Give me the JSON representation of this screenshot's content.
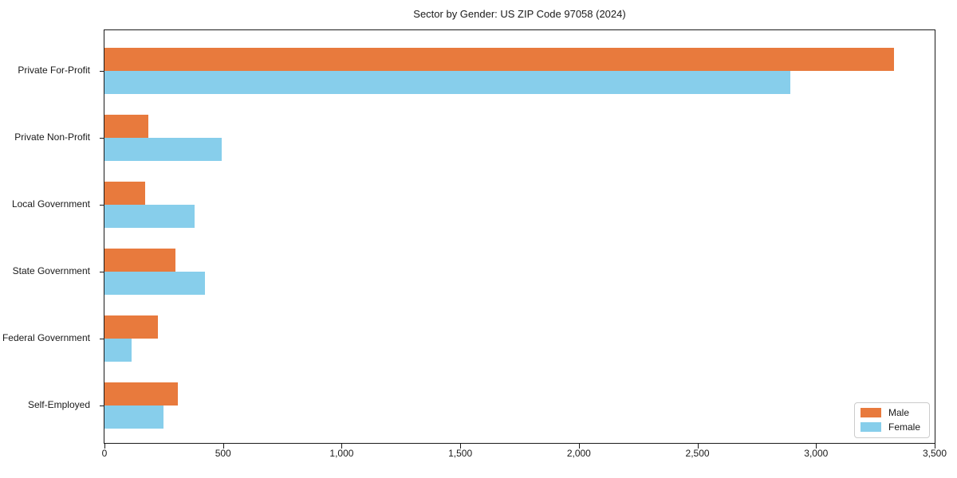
{
  "chart_data": {
    "type": "bar",
    "orientation": "horizontal",
    "title": "Sector by Gender: US ZIP Code 97058 (2024)",
    "categories": [
      "Private For-Profit",
      "Private Non-Profit",
      "Local Government",
      "State Government",
      "Federal Government",
      "Self-Employed"
    ],
    "series": [
      {
        "name": "Male",
        "color": "#E87A3D",
        "values": [
          3330,
          185,
          170,
          300,
          225,
          310
        ]
      },
      {
        "name": "Female",
        "color": "#87CEEB",
        "values": [
          2890,
          495,
          380,
          425,
          115,
          250
        ]
      }
    ],
    "xlabel": "",
    "ylabel": "",
    "xlim": [
      0,
      3500
    ],
    "x_ticks": [
      0,
      500,
      1000,
      1500,
      2000,
      2500,
      3000,
      3500
    ],
    "x_tick_labels": [
      "0",
      "500",
      "1,000",
      "1,500",
      "2,000",
      "2,500",
      "3,000",
      "3,500"
    ],
    "grid": false,
    "legend": {
      "position": "lower right",
      "entries": [
        "Male",
        "Female"
      ]
    },
    "axis_color": "#1a1a1a",
    "background_color": "#ffffff"
  }
}
